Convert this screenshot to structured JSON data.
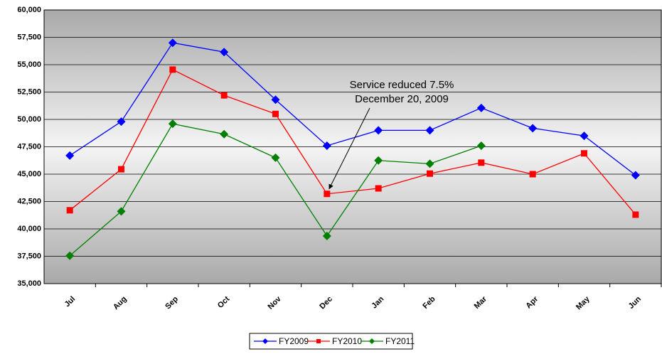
{
  "chart_data": {
    "type": "line",
    "categories": [
      "Jul",
      "Aug",
      "Sep",
      "Oct",
      "Nov",
      "Dec",
      "Jan",
      "Feb",
      "Mar",
      "Apr",
      "May",
      "Jun"
    ],
    "series": [
      {
        "name": "FY2009",
        "color": "#0000ff",
        "marker": "diamond",
        "values": [
          46700,
          49800,
          57000,
          56150,
          51800,
          47600,
          49000,
          49000,
          51050,
          49200,
          48500,
          44900
        ]
      },
      {
        "name": "FY2010",
        "color": "#ff0000",
        "marker": "square",
        "values": [
          41700,
          45450,
          54550,
          52200,
          50500,
          43200,
          43700,
          45050,
          46050,
          45000,
          46900,
          41300
        ]
      },
      {
        "name": "FY2011",
        "color": "#008000",
        "marker": "diamond",
        "values": [
          37550,
          41600,
          49600,
          48650,
          46500,
          39350,
          46250,
          45950,
          47600,
          null,
          null,
          null
        ]
      }
    ],
    "ylim": [
      35000,
      60000
    ],
    "yticks": [
      {
        "value": 35000,
        "label": "35,000"
      },
      {
        "value": 37500,
        "label": "37,500"
      },
      {
        "value": 40000,
        "label": "40,000"
      },
      {
        "value": 42500,
        "label": "42,500"
      },
      {
        "value": 45000,
        "label": "45,000"
      },
      {
        "value": 47500,
        "label": "47,500"
      },
      {
        "value": 50000,
        "label": "50,000"
      },
      {
        "value": 52500,
        "label": "52,500"
      },
      {
        "value": 55000,
        "label": "55,000"
      },
      {
        "value": 57500,
        "label": "57,500"
      },
      {
        "value": 60000,
        "label": "60,000"
      }
    ],
    "grid": true,
    "legend": "bottom",
    "annotation": [
      "Service reduced 7.5%",
      "December 20, 2009"
    ]
  }
}
